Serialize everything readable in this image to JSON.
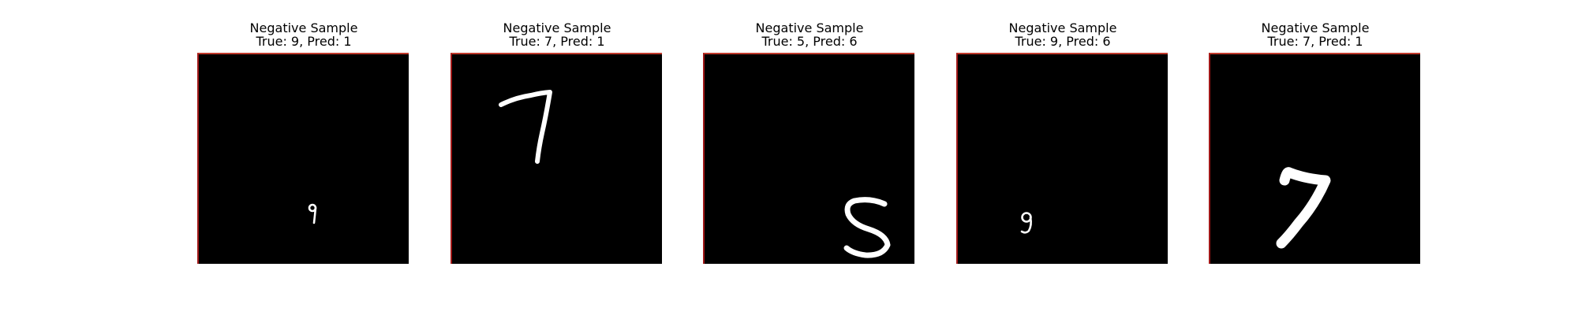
{
  "samples": [
    {
      "heading": "Negative Sample",
      "true_label": "True: 9, Pred: 1",
      "digit": "9"
    },
    {
      "heading": "Negative Sample",
      "true_label": "True: 7, Pred: 1",
      "digit": "7"
    },
    {
      "heading": "Negative Sample",
      "true_label": "True: 5, Pred: 6",
      "digit": "5"
    },
    {
      "heading": "Negative Sample",
      "true_label": "True: 9, Pred: 6",
      "digit": "9"
    },
    {
      "heading": "Negative Sample",
      "true_label": "True: 7, Pred: 1",
      "digit": "7"
    }
  ],
  "colors": {
    "frame_edge": "#c0392b",
    "image_bg": "#000000",
    "digit": "#ffffff"
  }
}
